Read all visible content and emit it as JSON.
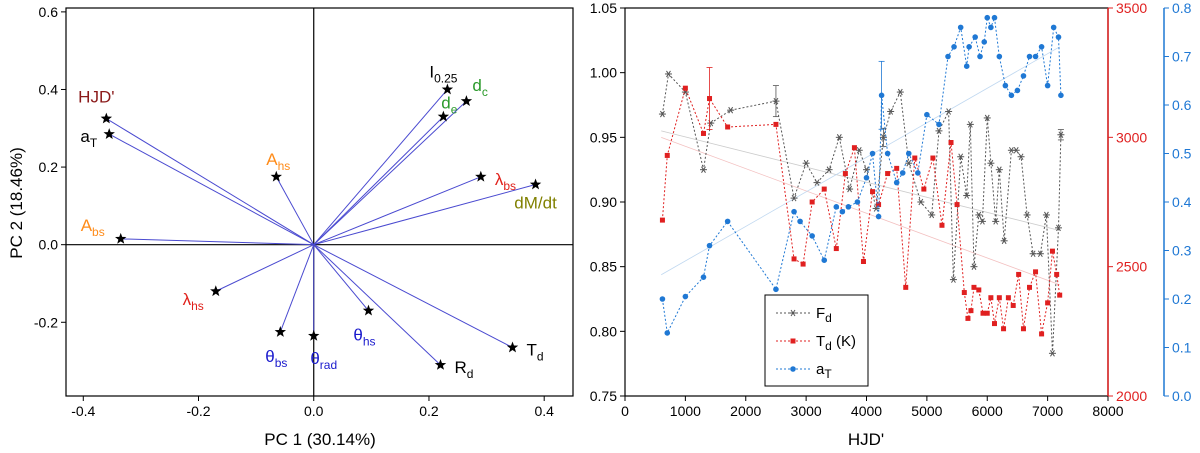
{
  "chart_data": [
    {
      "type": "scatter",
      "subtype": "pca-biplot",
      "xlabel": "PC 1 (30.14%)",
      "ylabel": "PC 2 (18.46%)",
      "xlim": [
        -0.43,
        0.45
      ],
      "ylim": [
        -0.39,
        0.61
      ],
      "xticks": [
        -0.4,
        -0.2,
        0.0,
        0.2,
        0.4
      ],
      "xtick_labels": [
        "-0.4",
        "-0.2",
        "0.0",
        "0.2",
        "0.4"
      ],
      "yticks": [
        -0.2,
        0.0,
        0.2,
        0.4,
        0.6
      ],
      "ytick_labels": [
        "-0.2",
        "0.0",
        "0.2",
        "0.4",
        "0.6"
      ],
      "vectors": [
        {
          "id": "hjd",
          "main": "HJD'",
          "sub": "",
          "x": -0.36,
          "y": 0.325,
          "color": "#8b1a1a",
          "place": "ul"
        },
        {
          "id": "at",
          "main": "a",
          "sub": "T",
          "x": -0.355,
          "y": 0.285,
          "color": "#000000",
          "place": "l"
        },
        {
          "id": "ahs",
          "main": "A",
          "sub": "hs",
          "x": -0.065,
          "y": 0.175,
          "color": "#ff8c1a",
          "place": "u"
        },
        {
          "id": "abs",
          "main": "A",
          "sub": "bs",
          "x": -0.335,
          "y": 0.015,
          "color": "#ff8c1a",
          "place": "ul"
        },
        {
          "id": "lhs",
          "main": "λ",
          "sub": "hs",
          "x": -0.17,
          "y": -0.12,
          "color": "#e0201a",
          "place": "dl"
        },
        {
          "id": "tbs",
          "main": "θ",
          "sub": "bs",
          "x": -0.058,
          "y": -0.225,
          "color": "#1a1acd",
          "place": "d"
        },
        {
          "id": "trad",
          "main": "θ",
          "sub": "rad",
          "x": 0.0,
          "y": -0.235,
          "color": "#1a1acd",
          "place": "dr"
        },
        {
          "id": "ths",
          "main": "θ",
          "sub": "hs",
          "x": 0.095,
          "y": -0.17,
          "color": "#1a1acd",
          "place": "d"
        },
        {
          "id": "rd",
          "main": "R",
          "sub": "d",
          "x": 0.22,
          "y": -0.31,
          "color": "#000000",
          "place": "r"
        },
        {
          "id": "td",
          "main": "T",
          "sub": "d",
          "x": 0.345,
          "y": -0.265,
          "color": "#000000",
          "place": "r"
        },
        {
          "id": "dmdt",
          "main": "dM/dt",
          "sub": "",
          "x": 0.385,
          "y": 0.155,
          "color": "#808000",
          "place": "dr"
        },
        {
          "id": "lbs",
          "main": "λ",
          "sub": "bs",
          "x": 0.29,
          "y": 0.175,
          "color": "#e0201a",
          "place": "r"
        },
        {
          "id": "i025",
          "main": "I",
          "sub": "0.25",
          "x": 0.232,
          "y": 0.4,
          "color": "#000000",
          "place": "u"
        },
        {
          "id": "dc",
          "main": "d",
          "sub": "c",
          "x": 0.265,
          "y": 0.37,
          "color": "#2a9a2a",
          "place": "ur"
        },
        {
          "id": "de",
          "main": "d",
          "sub": "e",
          "x": 0.225,
          "y": 0.33,
          "color": "#2a9a2a",
          "place": "u"
        }
      ]
    },
    {
      "type": "line",
      "xlabel": "HJD'",
      "xlim": [
        0,
        8000
      ],
      "xticks": [
        0,
        1000,
        2000,
        3000,
        4000,
        5000,
        6000,
        7000,
        8000
      ],
      "xtick_labels": [
        "0",
        "1000",
        "2000",
        "3000",
        "4000",
        "5000",
        "6000",
        "7000",
        "8000"
      ],
      "axes": {
        "left": {
          "ylim": [
            0.75,
            1.05
          ],
          "ticks": [
            0.75,
            0.8,
            0.85,
            0.9,
            0.95,
            1.0,
            1.05
          ],
          "tick_labels": [
            "0.75",
            "0.80",
            "0.85",
            "0.90",
            "0.95",
            "1.00",
            "1.05"
          ],
          "color": "#000000"
        },
        "right_red": {
          "ylim": [
            2000,
            3500
          ],
          "ticks": [
            2000,
            2500,
            3000,
            3500
          ],
          "tick_labels": [
            "2000",
            "2500",
            "3000",
            "3500"
          ],
          "color": "#e02020"
        },
        "right_blue": {
          "ylim": [
            0.0,
            0.8
          ],
          "ticks": [
            0.0,
            0.1,
            0.2,
            0.3,
            0.4,
            0.5,
            0.6,
            0.7,
            0.8
          ],
          "tick_labels": [
            "0.0",
            "0.1",
            "0.2",
            "0.3",
            "0.4",
            "0.5",
            "0.6",
            "0.7",
            "0.8"
          ],
          "color": "#1f78d4"
        }
      },
      "series": [
        {
          "id": "fd",
          "name": "F",
          "sub": "d",
          "axis": "left",
          "marker": "asterisk",
          "color": "#555555",
          "x": [
            620,
            720,
            1000,
            1300,
            1420,
            1750,
            2500,
            2800,
            3000,
            3180,
            3380,
            3550,
            3720,
            3880,
            4000,
            4160,
            4280,
            4400,
            4560,
            4700,
            4900,
            5080,
            5200,
            5360,
            5440,
            5560,
            5660,
            5720,
            5780,
            5860,
            5920,
            6000,
            6060,
            6140,
            6200,
            6280,
            6400,
            6480,
            6560,
            6660,
            6760,
            6880,
            6980,
            7080,
            7180,
            7220
          ],
          "y": [
            0.968,
            0.999,
            0.985,
            0.925,
            0.961,
            0.971,
            0.978,
            0.903,
            0.93,
            0.915,
            0.925,
            0.95,
            0.91,
            0.94,
            0.925,
            0.895,
            0.95,
            0.97,
            0.985,
            0.93,
            0.9,
            0.89,
            0.955,
            0.97,
            0.84,
            0.935,
            0.905,
            0.96,
            0.85,
            0.89,
            0.885,
            0.965,
            0.93,
            0.885,
            0.925,
            0.87,
            0.94,
            0.94,
            0.935,
            0.89,
            0.86,
            0.86,
            0.89,
            0.783,
            0.88,
            0.952
          ],
          "errorbars": [
            {
              "x": 2500,
              "y": 0.978,
              "err": 0.012
            },
            {
              "x": 4280,
              "y": 0.95,
              "err": 0.007
            },
            {
              "x": 7220,
              "y": 0.952,
              "err": 0.004
            }
          ]
        },
        {
          "id": "tdK",
          "name": "T",
          "sub": "d",
          "suffix": " (K)",
          "axis": "right_red",
          "marker": "square",
          "color": "#e02020",
          "x": [
            620,
            700,
            1000,
            1300,
            1400,
            1700,
            2500,
            2800,
            2950,
            3100,
            3300,
            3500,
            3650,
            3800,
            3950,
            4100,
            4200,
            4350,
            4500,
            4650,
            4800,
            4950,
            5100,
            5250,
            5400,
            5500,
            5620,
            5680,
            5730,
            5780,
            5860,
            5930,
            6000,
            6060,
            6120,
            6200,
            6270,
            6350,
            6430,
            6520,
            6600,
            6700,
            6800,
            6900,
            7000,
            7080,
            7150,
            7200
          ],
          "y": [
            2680,
            2930,
            3190,
            3015,
            3150,
            3040,
            3050,
            2530,
            2510,
            2750,
            2800,
            2570,
            2860,
            2960,
            2520,
            2790,
            2740,
            2860,
            2880,
            2420,
            2920,
            2800,
            2920,
            2660,
            2980,
            2740,
            2400,
            2300,
            2330,
            2420,
            2410,
            2320,
            2320,
            2380,
            2280,
            2380,
            2260,
            2380,
            2350,
            2470,
            2260,
            2420,
            2480,
            2240,
            2360,
            2560,
            2470,
            2390
          ],
          "errorbars": [
            {
              "x": 1400,
              "y": 3150,
              "err": 120
            }
          ]
        },
        {
          "id": "aT",
          "name": "a",
          "sub": "T",
          "axis": "right_blue",
          "marker": "circle",
          "color": "#1f78d4",
          "x": [
            620,
            700,
            1000,
            1300,
            1400,
            1700,
            2500,
            2800,
            2900,
            3100,
            3300,
            3500,
            3600,
            3700,
            3850,
            4000,
            4100,
            4200,
            4250,
            4350,
            4500,
            4600,
            4700,
            4850,
            5000,
            5200,
            5350,
            5450,
            5560,
            5660,
            5700,
            5800,
            5880,
            5950,
            6000,
            6060,
            6120,
            6200,
            6300,
            6400,
            6500,
            6600,
            6700,
            6800,
            6900,
            7000,
            7100,
            7180,
            7220
          ],
          "y": [
            0.2,
            0.13,
            0.205,
            0.245,
            0.31,
            0.36,
            0.22,
            0.38,
            0.36,
            0.33,
            0.28,
            0.39,
            0.38,
            0.39,
            0.4,
            0.45,
            0.5,
            0.37,
            0.62,
            0.5,
            0.44,
            0.46,
            0.5,
            0.46,
            0.58,
            0.56,
            0.7,
            0.72,
            0.76,
            0.68,
            0.72,
            0.74,
            0.7,
            0.73,
            0.78,
            0.76,
            0.78,
            0.7,
            0.64,
            0.62,
            0.63,
            0.66,
            0.7,
            0.7,
            0.72,
            0.64,
            0.76,
            0.74,
            0.62
          ],
          "errorbars": [
            {
              "x": 4250,
              "y": 0.62,
              "err": 0.07
            }
          ]
        }
      ]
    }
  ]
}
